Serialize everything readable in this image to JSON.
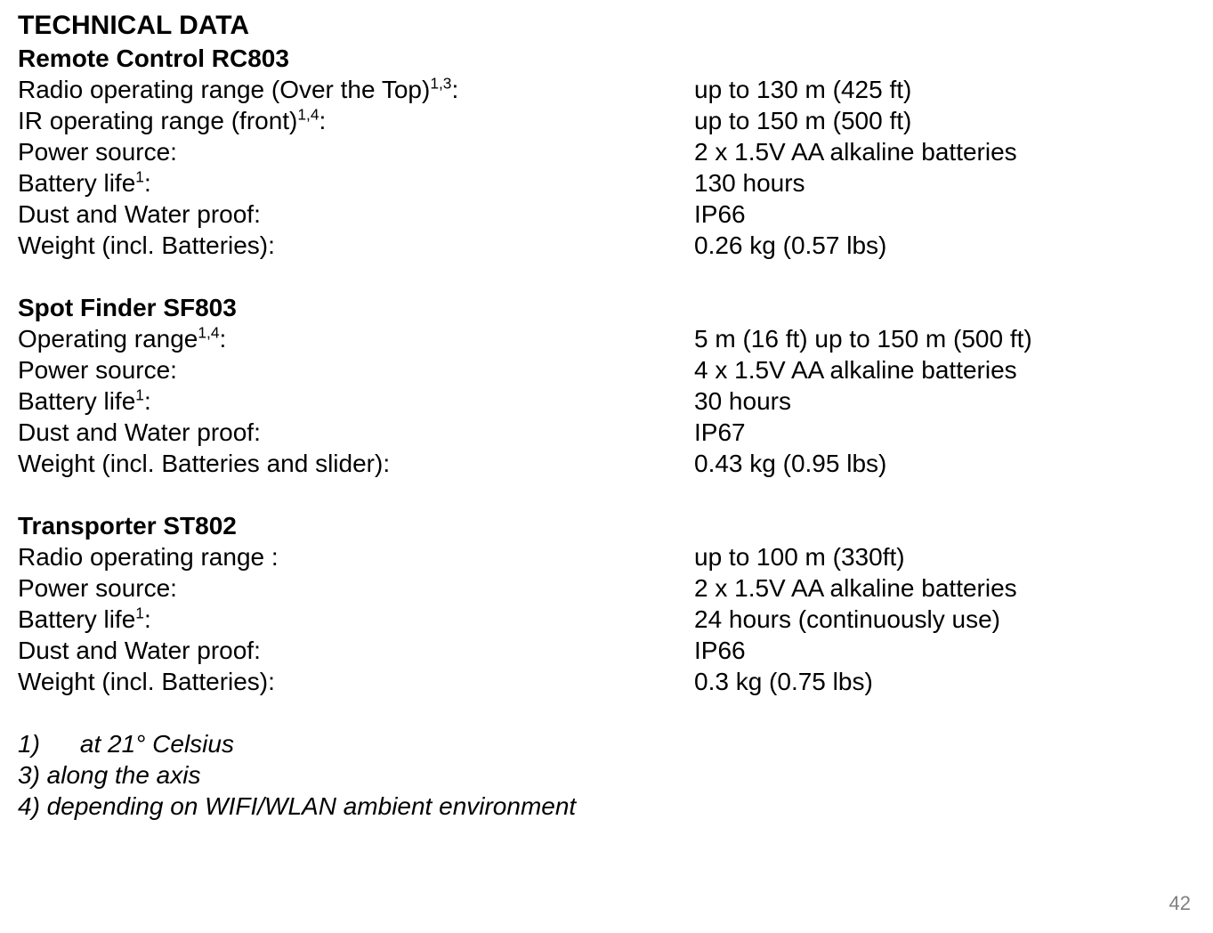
{
  "title": "TECHNICAL DATA",
  "page_number": "42",
  "sections": {
    "rc803": {
      "heading": "Remote Control RC803",
      "rows": {
        "radio_range_label_pre": "Radio operating range (Over the Top)",
        "radio_range_sup": "1,3",
        "radio_range_label_post": ":",
        "radio_range_value": "up to 130 m (425 ft)",
        "ir_range_label_pre": "IR operating range (front)",
        "ir_range_sup": "1,4",
        "ir_range_label_post": ":",
        "ir_range_value": "up to 150 m (500 ft)",
        "power_label": "Power source:",
        "power_value": "2 x 1.5V AA alkaline batteries",
        "battery_label_pre": "Battery life",
        "battery_sup": "1",
        "battery_label_post": ":",
        "battery_value": "130 hours",
        "dust_label": "Dust and Water proof:",
        "dust_value": "IP66",
        "weight_label": "Weight (incl. Batteries):",
        "weight_value": "0.26 kg (0.57 lbs)"
      }
    },
    "sf803": {
      "heading": "Spot Finder SF803",
      "rows": {
        "op_range_label_pre": "Operating range",
        "op_range_sup": "1,4",
        "op_range_label_post": ":",
        "op_range_value": "5 m (16 ft) up to 150 m (500 ft)",
        "power_label": "Power source:",
        "power_value": "4 x 1.5V AA alkaline batteries",
        "battery_label_pre": "Battery life",
        "battery_sup": "1",
        "battery_label_post": ":",
        "battery_value": "30 hours",
        "dust_label": "Dust and Water proof:",
        "dust_value": "IP67",
        "weight_label": "Weight (incl. Batteries and slider):",
        "weight_value": "0.43 kg (0.95 lbs)"
      }
    },
    "st802": {
      "heading": "Transporter ST802",
      "rows": {
        "radio_range_label": "Radio operating  range :",
        "radio_range_value": "up to 100 m (330ft)",
        "power_label": "Power source:",
        "power_value": "2 x 1.5V AA alkaline batteries",
        "battery_label_pre": "Battery life",
        "battery_sup": "1",
        "battery_label_post": ":",
        "battery_value": "24 hours (continuously use)",
        "dust_label": "Dust and Water proof:",
        "dust_value": "IP66",
        "weight_label": "Weight (incl. Batteries):",
        "weight_value": "0.3 kg (0.75 lbs)"
      }
    }
  },
  "footnotes": {
    "f1_pre": "1)",
    "f1_text": "at 21° Celsius",
    "f3": "3) along the axis",
    "f4": "4) depending on WIFI/WLAN ambient environment"
  }
}
